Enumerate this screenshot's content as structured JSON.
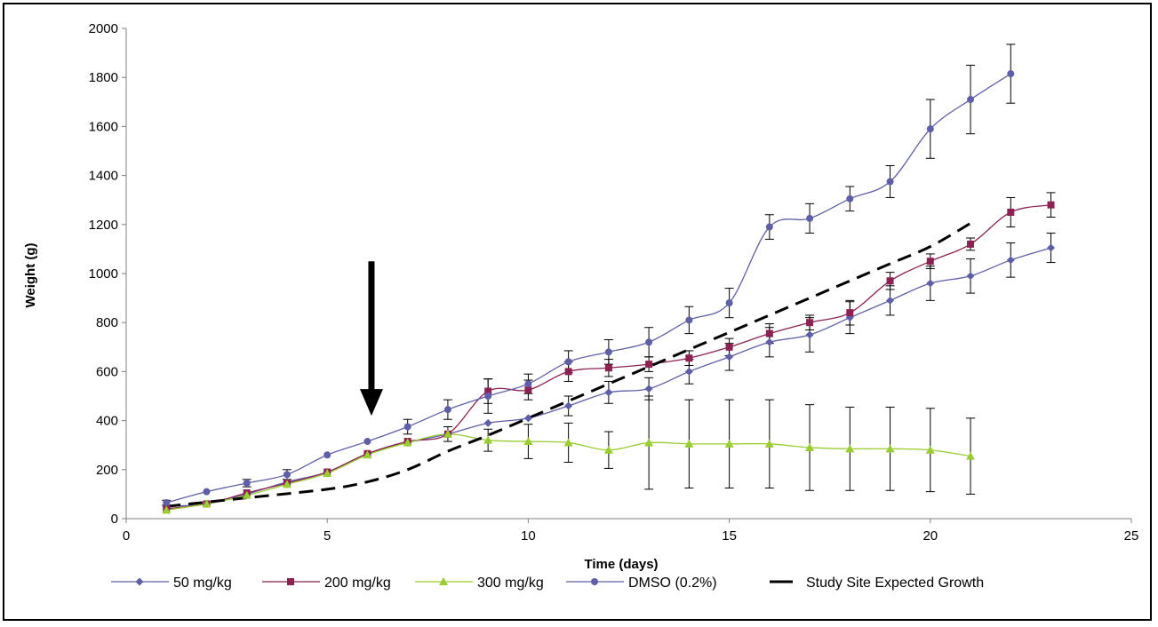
{
  "chart_data": {
    "type": "line",
    "title": "",
    "xlabel": "Time (days)",
    "ylabel": "Weight (g)",
    "xlim": [
      0,
      25
    ],
    "ylim": [
      0,
      2000
    ],
    "xticks": [
      0,
      5,
      10,
      15,
      20,
      25
    ],
    "yticks": [
      0,
      200,
      400,
      600,
      800,
      1000,
      1200,
      1400,
      1600,
      1800,
      2000
    ],
    "grid": false,
    "legend_position": "bottom",
    "arrow_annotation": {
      "x": 6.1,
      "y_top": 1050,
      "y_tip": 420
    },
    "series": [
      {
        "name": "50 mg/kg",
        "color": "#5f5fa8",
        "marker": "diamond",
        "dash": false,
        "x": [
          1,
          2,
          3,
          4,
          5,
          6,
          7,
          8,
          9,
          10,
          11,
          12,
          13,
          14,
          15,
          16,
          17,
          18,
          19,
          20,
          21,
          22,
          23
        ],
        "y": [
          50,
          60,
          100,
          150,
          190,
          265,
          310,
          345,
          390,
          410,
          460,
          515,
          530,
          600,
          660,
          720,
          750,
          820,
          890,
          960,
          990,
          1055,
          1105
        ],
        "err": [
          0,
          0,
          0,
          0,
          0,
          0,
          0,
          0,
          0,
          0,
          40,
          45,
          45,
          50,
          55,
          60,
          70,
          65,
          60,
          70,
          70,
          70,
          60
        ]
      },
      {
        "name": "200 mg/kg",
        "color": "#8b2252",
        "marker": "square",
        "dash": false,
        "x": [
          1,
          2,
          3,
          4,
          5,
          6,
          7,
          8,
          9,
          10,
          11,
          12,
          13,
          14,
          15,
          16,
          17,
          18,
          19,
          20,
          21,
          22,
          23
        ],
        "y": [
          40,
          60,
          105,
          145,
          190,
          265,
          315,
          345,
          520,
          525,
          600,
          615,
          630,
          655,
          700,
          755,
          800,
          840,
          970,
          1050,
          1120,
          1250,
          1280
        ],
        "err": [
          0,
          0,
          0,
          0,
          0,
          0,
          0,
          0,
          50,
          40,
          40,
          35,
          30,
          30,
          35,
          40,
          30,
          50,
          35,
          30,
          25,
          60,
          50
        ]
      },
      {
        "name": "300 mg/kg",
        "color": "#9acd32",
        "marker": "triangle",
        "dash": false,
        "x": [
          1,
          2,
          3,
          4,
          5,
          6,
          7,
          8,
          9,
          10,
          11,
          12,
          13,
          14,
          15,
          16,
          17,
          18,
          19,
          20,
          21
        ],
        "y": [
          35,
          60,
          95,
          140,
          185,
          260,
          310,
          345,
          320,
          315,
          310,
          280,
          310,
          305,
          305,
          305,
          290,
          285,
          285,
          280,
          255
        ],
        "err": [
          0,
          0,
          0,
          0,
          0,
          0,
          0,
          30,
          45,
          70,
          80,
          75,
          190,
          180,
          180,
          180,
          175,
          170,
          170,
          170,
          155
        ]
      },
      {
        "name": "DMSO (0.2%)",
        "color": "#5f5fa8",
        "marker": "circle",
        "dash": false,
        "x": [
          1,
          2,
          3,
          4,
          5,
          6,
          7,
          8,
          9,
          10,
          11,
          12,
          13,
          14,
          15,
          16,
          17,
          18,
          19,
          20,
          21,
          22
        ],
        "y": [
          65,
          110,
          145,
          180,
          260,
          315,
          375,
          445,
          500,
          550,
          640,
          680,
          720,
          810,
          880,
          1190,
          1225,
          1305,
          1375,
          1590,
          1710,
          1815
        ],
        "err": [
          10,
          0,
          15,
          20,
          0,
          0,
          30,
          40,
          70,
          40,
          45,
          50,
          60,
          55,
          60,
          50,
          60,
          50,
          65,
          120,
          140,
          120
        ]
      },
      {
        "name": "Study Site Expected Growth",
        "color": "#000000",
        "marker": "none",
        "dash": true,
        "x": [
          1,
          3,
          5,
          6,
          7,
          8,
          9,
          10,
          11,
          12,
          13,
          14,
          15,
          16,
          17,
          18,
          19,
          20,
          21
        ],
        "y": [
          50,
          85,
          120,
          150,
          200,
          275,
          340,
          410,
          480,
          550,
          620,
          690,
          760,
          830,
          900,
          970,
          1040,
          1110,
          1205
        ],
        "err": []
      }
    ]
  }
}
